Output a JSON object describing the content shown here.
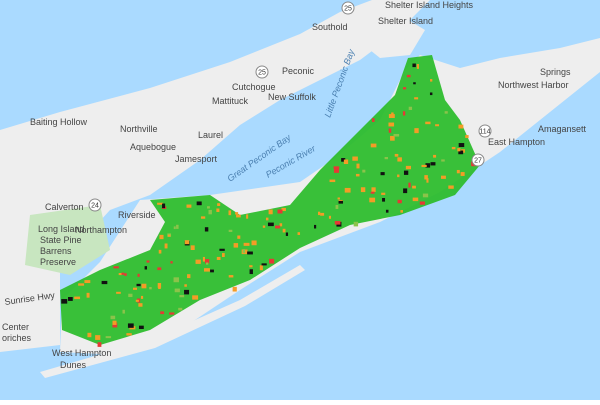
{
  "labels": [
    "Southold",
    "Shelter Island Heights",
    "Shelter Island",
    "Peconic",
    "Cutchogue",
    "Mattituck",
    "New Suffolk",
    "Northwest Harbor",
    "Springs",
    "Amagansett",
    "East Hampton",
    "Baiting Hollow",
    "Northville",
    "Laurel",
    "Aquebogue",
    "Jamesport",
    "Great Peconic Bay",
    "Peconic River",
    "Little Peconic Bay",
    "Calverton",
    "Riverside",
    "Northampton",
    "Long Island",
    "State Pine",
    "Barrens",
    "Preserve",
    "Sunrise Hwy",
    "West Hampton",
    "Dunes",
    "Center",
    "oriches"
  ],
  "routes": [
    "25",
    "25",
    "114",
    "27",
    "24"
  ]
}
